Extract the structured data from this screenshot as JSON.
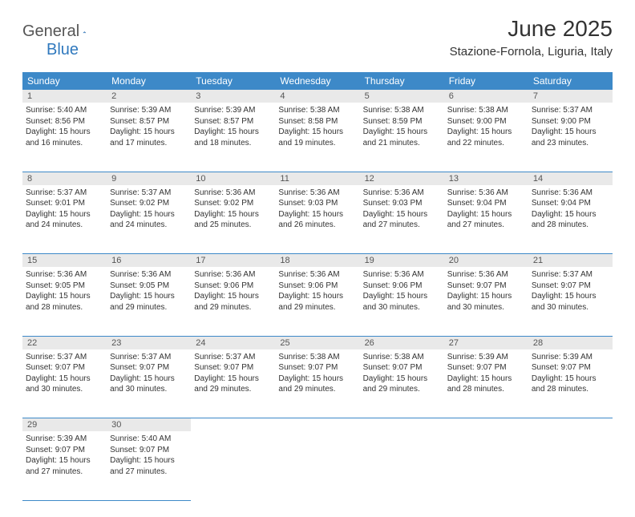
{
  "logo": {
    "text1": "General",
    "text2": "Blue"
  },
  "title": "June 2025",
  "location": "Stazione-Fornola, Liguria, Italy",
  "colors": {
    "header_bg": "#3d89c8",
    "header_text": "#ffffff",
    "daynum_bg": "#e9e9e9",
    "border": "#3d89c8",
    "logo_gray": "#555555",
    "logo_blue": "#3079be",
    "text": "#333333",
    "page_bg": "#ffffff"
  },
  "dayNames": [
    "Sunday",
    "Monday",
    "Tuesday",
    "Wednesday",
    "Thursday",
    "Friday",
    "Saturday"
  ],
  "weeks": [
    [
      {
        "n": "1",
        "sr": "5:40 AM",
        "ss": "8:56 PM",
        "dl": "15 hours and 16 minutes."
      },
      {
        "n": "2",
        "sr": "5:39 AM",
        "ss": "8:57 PM",
        "dl": "15 hours and 17 minutes."
      },
      {
        "n": "3",
        "sr": "5:39 AM",
        "ss": "8:57 PM",
        "dl": "15 hours and 18 minutes."
      },
      {
        "n": "4",
        "sr": "5:38 AM",
        "ss": "8:58 PM",
        "dl": "15 hours and 19 minutes."
      },
      {
        "n": "5",
        "sr": "5:38 AM",
        "ss": "8:59 PM",
        "dl": "15 hours and 21 minutes."
      },
      {
        "n": "6",
        "sr": "5:38 AM",
        "ss": "9:00 PM",
        "dl": "15 hours and 22 minutes."
      },
      {
        "n": "7",
        "sr": "5:37 AM",
        "ss": "9:00 PM",
        "dl": "15 hours and 23 minutes."
      }
    ],
    [
      {
        "n": "8",
        "sr": "5:37 AM",
        "ss": "9:01 PM",
        "dl": "15 hours and 24 minutes."
      },
      {
        "n": "9",
        "sr": "5:37 AM",
        "ss": "9:02 PM",
        "dl": "15 hours and 24 minutes."
      },
      {
        "n": "10",
        "sr": "5:36 AM",
        "ss": "9:02 PM",
        "dl": "15 hours and 25 minutes."
      },
      {
        "n": "11",
        "sr": "5:36 AM",
        "ss": "9:03 PM",
        "dl": "15 hours and 26 minutes."
      },
      {
        "n": "12",
        "sr": "5:36 AM",
        "ss": "9:03 PM",
        "dl": "15 hours and 27 minutes."
      },
      {
        "n": "13",
        "sr": "5:36 AM",
        "ss": "9:04 PM",
        "dl": "15 hours and 27 minutes."
      },
      {
        "n": "14",
        "sr": "5:36 AM",
        "ss": "9:04 PM",
        "dl": "15 hours and 28 minutes."
      }
    ],
    [
      {
        "n": "15",
        "sr": "5:36 AM",
        "ss": "9:05 PM",
        "dl": "15 hours and 28 minutes."
      },
      {
        "n": "16",
        "sr": "5:36 AM",
        "ss": "9:05 PM",
        "dl": "15 hours and 29 minutes."
      },
      {
        "n": "17",
        "sr": "5:36 AM",
        "ss": "9:06 PM",
        "dl": "15 hours and 29 minutes."
      },
      {
        "n": "18",
        "sr": "5:36 AM",
        "ss": "9:06 PM",
        "dl": "15 hours and 29 minutes."
      },
      {
        "n": "19",
        "sr": "5:36 AM",
        "ss": "9:06 PM",
        "dl": "15 hours and 30 minutes."
      },
      {
        "n": "20",
        "sr": "5:36 AM",
        "ss": "9:07 PM",
        "dl": "15 hours and 30 minutes."
      },
      {
        "n": "21",
        "sr": "5:37 AM",
        "ss": "9:07 PM",
        "dl": "15 hours and 30 minutes."
      }
    ],
    [
      {
        "n": "22",
        "sr": "5:37 AM",
        "ss": "9:07 PM",
        "dl": "15 hours and 30 minutes."
      },
      {
        "n": "23",
        "sr": "5:37 AM",
        "ss": "9:07 PM",
        "dl": "15 hours and 30 minutes."
      },
      {
        "n": "24",
        "sr": "5:37 AM",
        "ss": "9:07 PM",
        "dl": "15 hours and 29 minutes."
      },
      {
        "n": "25",
        "sr": "5:38 AM",
        "ss": "9:07 PM",
        "dl": "15 hours and 29 minutes."
      },
      {
        "n": "26",
        "sr": "5:38 AM",
        "ss": "9:07 PM",
        "dl": "15 hours and 29 minutes."
      },
      {
        "n": "27",
        "sr": "5:39 AM",
        "ss": "9:07 PM",
        "dl": "15 hours and 28 minutes."
      },
      {
        "n": "28",
        "sr": "5:39 AM",
        "ss": "9:07 PM",
        "dl": "15 hours and 28 minutes."
      }
    ],
    [
      {
        "n": "29",
        "sr": "5:39 AM",
        "ss": "9:07 PM",
        "dl": "15 hours and 27 minutes."
      },
      {
        "n": "30",
        "sr": "5:40 AM",
        "ss": "9:07 PM",
        "dl": "15 hours and 27 minutes."
      },
      null,
      null,
      null,
      null,
      null
    ]
  ],
  "labels": {
    "sunrise": "Sunrise: ",
    "sunset": "Sunset: ",
    "daylight": "Daylight: "
  }
}
